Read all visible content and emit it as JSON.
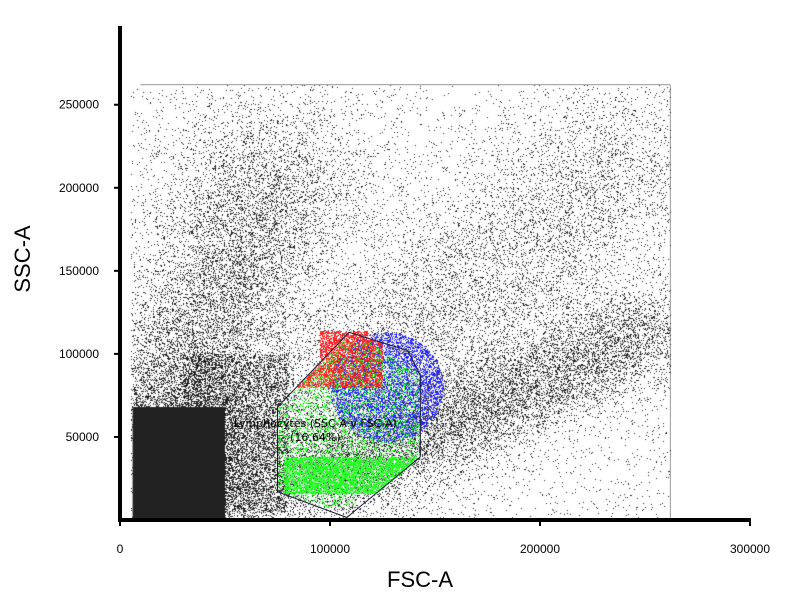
{
  "chart_data": {
    "type": "scatter",
    "xlabel": "FSC-A",
    "ylabel": "SSC-A",
    "xlim": [
      0,
      300000
    ],
    "ylim": [
      0,
      295000
    ],
    "x_ticks": [
      {
        "value": 0,
        "label": "0"
      },
      {
        "value": 100000,
        "label": "100000"
      },
      {
        "value": 200000,
        "label": "200000"
      },
      {
        "value": 300000,
        "label": "300000"
      }
    ],
    "y_ticks": [
      {
        "value": 50000,
        "label": "50000"
      },
      {
        "value": 100000,
        "label": "100000"
      },
      {
        "value": 150000,
        "label": "150000"
      },
      {
        "value": 200000,
        "label": "200000"
      },
      {
        "value": 250000,
        "label": "250000"
      }
    ],
    "data_extent": {
      "x": [
        5000,
        262000
      ],
      "y": [
        0,
        262000
      ]
    },
    "populations": [
      {
        "color": "#222222",
        "role": "all events"
      },
      {
        "color": "#ff2020",
        "role": "gated overlay"
      },
      {
        "color": "#1f1fff",
        "role": "gated overlay"
      },
      {
        "color": "#22ff22",
        "role": "gated overlay"
      }
    ],
    "gate": {
      "type": "polygon",
      "label_line1": "Lymphocytes (SSC-A v FSC-A)",
      "label_line2": "(16.64%)",
      "vertices": [
        [
          108000,
          1500
        ],
        [
          75000,
          17000
        ],
        [
          75000,
          68000
        ],
        [
          109000,
          113000
        ],
        [
          137000,
          102000
        ],
        [
          143000,
          87000
        ],
        [
          143000,
          38000
        ]
      ],
      "stroke": "#1a1a3a"
    },
    "grid": false,
    "legend": "none"
  }
}
